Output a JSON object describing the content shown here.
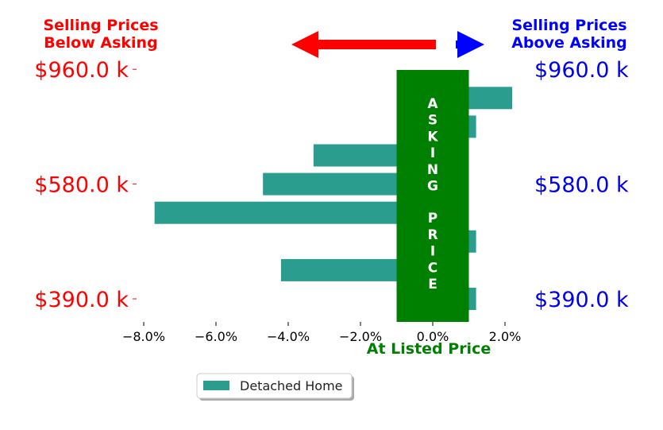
{
  "chart_data": {
    "type": "bar",
    "orientation": "horizontal",
    "series": [
      {
        "name": "Detached Home",
        "color": "#2a9d8f",
        "values": [
          1.2,
          -4.2,
          1.2,
          -7.7,
          -4.7,
          -3.3,
          1.2,
          2.2
        ]
      }
    ],
    "xlim": [
      -9.0,
      2.5
    ],
    "x_ticks": [
      {
        "value": -8,
        "label": "−8.0%"
      },
      {
        "value": -6,
        "label": "−6.0%"
      },
      {
        "value": -4,
        "label": "−4.0%"
      },
      {
        "value": -2,
        "label": "−2.0%"
      },
      {
        "value": 0,
        "label": "0.0%"
      },
      {
        "value": 2,
        "label": "2.0%"
      }
    ],
    "y_tick_labels": [
      "$390.0 k",
      "$580.0 k",
      "$960.0 k"
    ],
    "y_tick_rows": [
      0,
      4,
      8
    ],
    "xlabel": "At Listed Price",
    "asking_band": {
      "from": -1.0,
      "to": 1.0,
      "color": "#008000",
      "text": "ASKING PRICE"
    },
    "legend_position": "bottom-center",
    "grid": false
  },
  "annotations": {
    "left_title_line1": "Selling Prices",
    "left_title_line2": "Below Asking",
    "right_title_line1": "Selling Prices",
    "right_title_line2": "Above Asking",
    "left_arrow_color": "#ff0000",
    "right_arrow_color": "#0000ff",
    "xlabel_color": "#008000"
  }
}
